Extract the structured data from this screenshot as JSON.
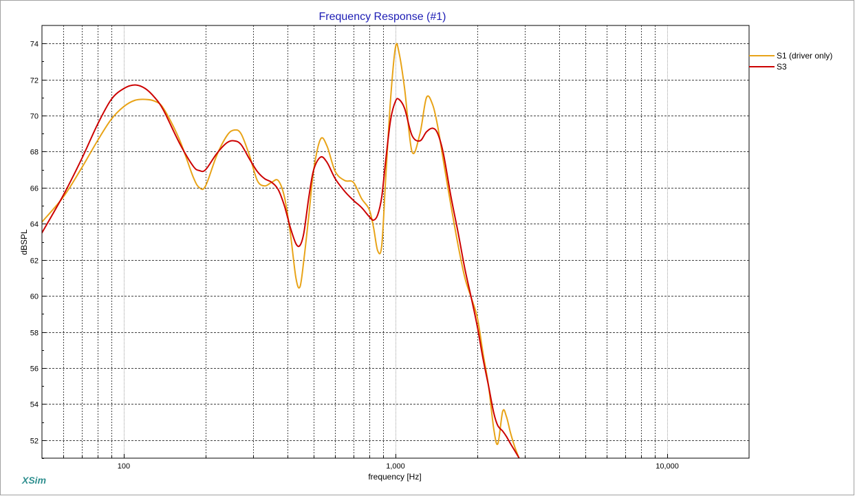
{
  "chart_data": {
    "type": "line",
    "title": "Frequency Response (#1)",
    "xlabel": "frequency [Hz]",
    "ylabel": "dBSPL",
    "x_scale": "log",
    "xlim": [
      50,
      20000
    ],
    "ylim": [
      51,
      75
    ],
    "x_ticks": [
      {
        "value": 100,
        "label": "100"
      },
      {
        "value": 1000,
        "label": "1,000"
      },
      {
        "value": 10000,
        "label": "10,000"
      }
    ],
    "y_ticks": [
      52,
      54,
      56,
      58,
      60,
      62,
      64,
      66,
      68,
      70,
      72,
      74
    ],
    "grid": true,
    "legend_position": "top-right",
    "series": [
      {
        "name": "S1 (driver only)",
        "color": "#E8A317",
        "x": [
          50,
          60,
          70,
          80,
          90,
          100,
          110,
          120,
          130,
          140,
          160,
          180,
          190,
          200,
          220,
          240,
          255,
          270,
          290,
          310,
          330,
          350,
          370,
          390,
          410,
          430,
          445,
          460,
          480,
          500,
          530,
          560,
          600,
          650,
          700,
          750,
          800,
          830,
          860,
          890,
          920,
          960,
          1000,
          1030,
          1080,
          1150,
          1230,
          1300,
          1370,
          1430,
          1500,
          1600,
          1700,
          1800,
          1900,
          2000,
          2100,
          2200,
          2300,
          2380,
          2480,
          2560,
          2650,
          2750,
          2850
        ],
        "y": [
          64.1,
          65.5,
          67.1,
          68.6,
          69.8,
          70.5,
          70.85,
          70.9,
          70.8,
          70.4,
          68.7,
          66.6,
          66.0,
          66.1,
          67.8,
          68.9,
          69.2,
          69.0,
          67.8,
          66.4,
          66.1,
          66.3,
          66.4,
          65.5,
          63.5,
          61.0,
          60.5,
          62.0,
          64.5,
          67.0,
          68.7,
          68.3,
          66.9,
          66.4,
          66.3,
          65.4,
          64.8,
          63.8,
          62.5,
          62.8,
          66.5,
          71.0,
          73.8,
          73.5,
          71.5,
          68.0,
          69.0,
          71.0,
          70.6,
          69.4,
          67.5,
          65.0,
          62.8,
          61.0,
          59.9,
          58.8,
          56.8,
          55.0,
          52.6,
          51.8,
          53.6,
          53.3,
          52.4,
          51.6,
          51.0
        ]
      },
      {
        "name": "S3",
        "color": "#CC0000",
        "x": [
          50,
          60,
          70,
          80,
          90,
          100,
          110,
          120,
          130,
          140,
          160,
          180,
          190,
          200,
          220,
          240,
          255,
          270,
          290,
          310,
          330,
          350,
          370,
          390,
          410,
          430,
          445,
          460,
          480,
          500,
          530,
          560,
          600,
          650,
          700,
          750,
          800,
          830,
          860,
          890,
          920,
          960,
          1000,
          1030,
          1080,
          1150,
          1230,
          1300,
          1370,
          1430,
          1500,
          1600,
          1700,
          1800,
          1900,
          2000,
          2100,
          2200,
          2300,
          2380,
          2480,
          2560,
          2650,
          2750,
          2850
        ],
        "y": [
          63.5,
          65.6,
          67.6,
          69.5,
          70.9,
          71.5,
          71.7,
          71.5,
          71.0,
          70.3,
          68.5,
          67.2,
          66.95,
          67.0,
          67.9,
          68.5,
          68.6,
          68.4,
          67.6,
          66.9,
          66.5,
          66.3,
          65.9,
          65.0,
          63.8,
          62.9,
          62.8,
          63.5,
          65.5,
          67.0,
          67.7,
          67.4,
          66.5,
          65.8,
          65.3,
          64.9,
          64.4,
          64.2,
          64.5,
          65.5,
          67.5,
          69.8,
          70.8,
          70.9,
          70.4,
          68.9,
          68.6,
          69.1,
          69.3,
          69.0,
          67.9,
          65.5,
          63.5,
          61.5,
          59.9,
          58.3,
          56.5,
          55.0,
          53.5,
          52.8,
          52.5,
          52.2,
          51.8,
          51.4,
          51.0
        ]
      }
    ]
  },
  "branding": {
    "label": "XSim",
    "color": "#2F8F8F"
  },
  "colors": {
    "title": "#1C1CB4",
    "frame": "#000000",
    "grid": "#404040",
    "background": "#ffffff",
    "outer_border": "#A0A0A0"
  }
}
